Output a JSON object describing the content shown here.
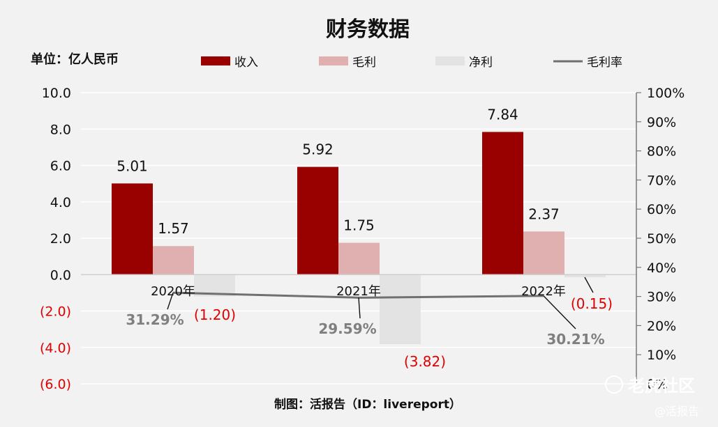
{
  "chart_data": {
    "type": "bar",
    "title": "财务数据",
    "unit_label": "单位：亿人民币",
    "footer": "制图：活报告（ID：livereport）",
    "categories": [
      "2020年",
      "2021年",
      "2022年"
    ],
    "ylim": [
      -6.0,
      10.0
    ],
    "y_ticks": [
      "10.0",
      "8.0",
      "6.0",
      "4.0",
      "2.0",
      "0.0",
      "(2.0)",
      "(4.0)",
      "(6.0)"
    ],
    "y2lim": [
      0,
      100
    ],
    "y2_ticks": [
      "100%",
      "90%",
      "80%",
      "70%",
      "60%",
      "50%",
      "40%",
      "30%",
      "20%",
      "10%",
      "0%"
    ],
    "legend_position": "top",
    "series": [
      {
        "name": "收入",
        "type": "bar",
        "color": "#990000",
        "values": [
          5.01,
          5.92,
          7.84
        ],
        "labels": [
          "5.01",
          "5.92",
          "7.84"
        ]
      },
      {
        "name": "毛利",
        "type": "bar",
        "color": "#e0b0b0",
        "values": [
          1.57,
          1.75,
          2.37
        ],
        "labels": [
          "1.57",
          "1.75",
          "2.37"
        ]
      },
      {
        "name": "净利",
        "type": "bar",
        "color": "#e3e3e3",
        "values": [
          -1.2,
          -3.82,
          -0.15
        ],
        "labels": [
          "(1.20)",
          "(3.82)",
          "(0.15)"
        ]
      },
      {
        "name": "毛利率",
        "type": "line",
        "axis": "right",
        "color": "#707070",
        "values": [
          31.29,
          29.59,
          30.21
        ],
        "labels": [
          "31.29%",
          "29.59%",
          "30.21%"
        ]
      }
    ],
    "watermark": {
      "text1": "老虎社区",
      "text2": "@活报告"
    }
  }
}
